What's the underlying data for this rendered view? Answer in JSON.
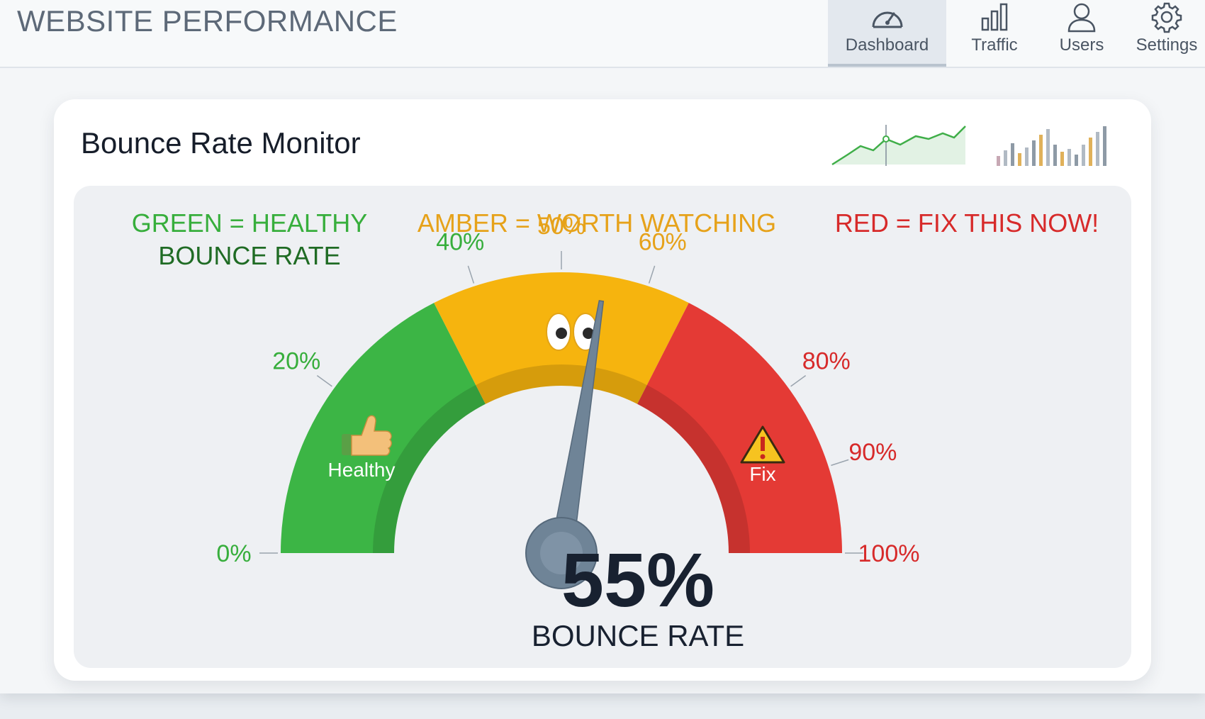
{
  "header": {
    "title": "WEBSITE PERFORMANCE",
    "nav": [
      {
        "label": "Dashboard",
        "icon": "speedometer-icon",
        "active": true
      },
      {
        "label": "Traffic",
        "icon": "bar-chart-icon",
        "active": false
      },
      {
        "label": "Users",
        "icon": "user-icon",
        "active": false
      },
      {
        "label": "Settings",
        "icon": "gear-icon",
        "active": false
      }
    ]
  },
  "card": {
    "title": "Bounce Rate Monitor"
  },
  "legend": {
    "green_line1": "GREEN = HEALTHY",
    "green_line2": "BOUNCE RATE",
    "amber": "AMBER = WORTH WATCHING",
    "red": "RED = FIX THIS NOW!"
  },
  "gauge": {
    "value": 55,
    "value_text": "55%",
    "label": "BOUNCE RATE",
    "min": 0,
    "max": 100,
    "ticks": [
      {
        "value": 0,
        "label": "0%",
        "color": "#37ae3c"
      },
      {
        "value": 20,
        "label": "20%",
        "color": "#37ae3c"
      },
      {
        "value": 40,
        "label": "40%",
        "color": "#37ae3c"
      },
      {
        "value": 50,
        "label": "50%",
        "color": "#e6a21a"
      },
      {
        "value": 60,
        "label": "60%",
        "color": "#e6a21a"
      },
      {
        "value": 80,
        "label": "80%",
        "color": "#d72a2a"
      },
      {
        "value": 90,
        "label": "90%",
        "color": "#d72a2a"
      },
      {
        "value": 100,
        "label": "100%",
        "color": "#d72a2a"
      }
    ],
    "zones": [
      {
        "from": 0,
        "to": 35,
        "color": "#3cb545",
        "name": "green"
      },
      {
        "from": 35,
        "to": 65,
        "color": "#f6b40e",
        "name": "amber"
      },
      {
        "from": 65,
        "to": 100,
        "color": "#e43a35",
        "name": "red"
      }
    ],
    "healthy_label": "Healthy",
    "fix_label": "Fix"
  },
  "colors": {
    "green": "#3cb545",
    "amber": "#f6b40e",
    "red": "#e43a35",
    "needle": "#6f8497"
  }
}
